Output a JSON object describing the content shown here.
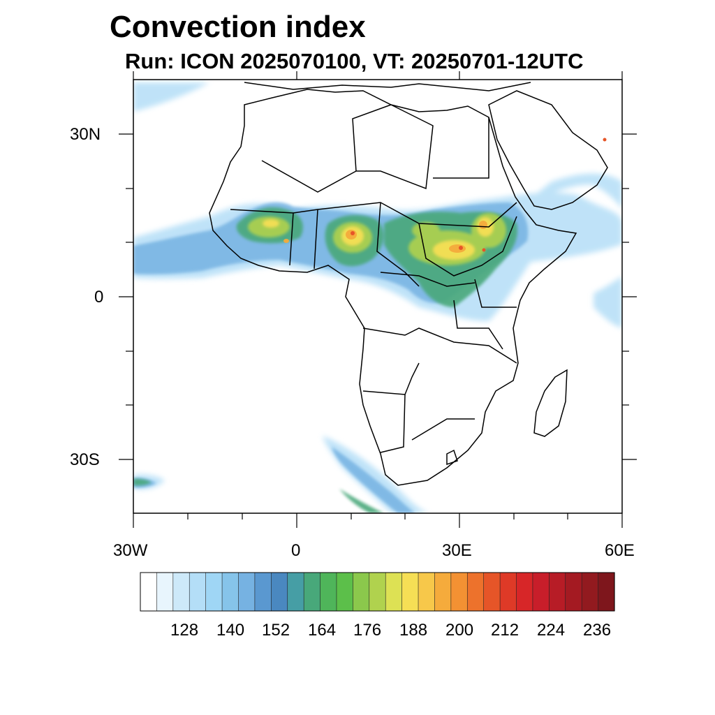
{
  "title": "Convection index",
  "subtitle": "Run: ICON 2025070100,  VT: 20250701-12UTC",
  "map": {
    "region": "Africa",
    "lon_range": [
      -30,
      60
    ],
    "lat_range": [
      -40,
      40
    ],
    "lon_tick_labels": [
      "30W",
      "0",
      "30E",
      "60E"
    ],
    "lat_tick_labels": [
      "30N",
      "0",
      "30S"
    ]
  },
  "colorbar": {
    "tick_labels": [
      "128",
      "140",
      "152",
      "164",
      "176",
      "188",
      "200",
      "212",
      "224",
      "236"
    ],
    "colors": [
      "#ffffff",
      "#e8f5fd",
      "#cde9f9",
      "#b4def7",
      "#9fd6f5",
      "#86c4ea",
      "#76b2e2",
      "#5a98d0",
      "#4a88c0",
      "#469ea5",
      "#48a87a",
      "#4fb55a",
      "#5cbf4a",
      "#8bc84c",
      "#b0d24e",
      "#dde154",
      "#f6df55",
      "#f7c84a",
      "#f5ab3c",
      "#f39133",
      "#ed722c",
      "#e65528",
      "#de3a27",
      "#d72628",
      "#c81e2a",
      "#b71c26",
      "#a41a22",
      "#921a1f",
      "#7e161c"
    ]
  },
  "convection_cells": {
    "colors": [
      "#86c4ea",
      "#5a98d0",
      "#48a87a",
      "#5cbf4a",
      "#b0d24e",
      "#f6df55",
      "#f5ab3c",
      "#e65528"
    ]
  }
}
